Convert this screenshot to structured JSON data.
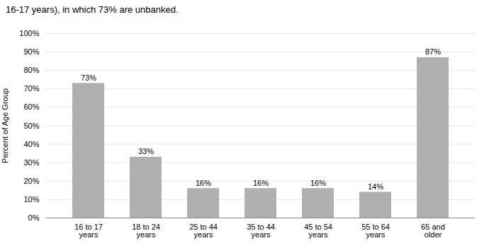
{
  "chart_data": {
    "type": "bar",
    "title": "16-17 years), in which 73% are unbanked.",
    "categories": [
      "16 to 17\nyears",
      "18 to 24\nyears",
      "25 to 44\nyears",
      "35 to 44\nyears",
      "45 to 54\nyears",
      "55 to 64\nyears",
      "65 and\nolder"
    ],
    "values": [
      0.73,
      0.33,
      0.16,
      0.16,
      0.16,
      0.14,
      0.87
    ],
    "value_labels": [
      "73%",
      "33%",
      "16%",
      "16%",
      "16%",
      "14%",
      "87%"
    ],
    "data_labels": true,
    "color": "#b0b0b0",
    "ylabel": "Percent of Age Group",
    "ylim": [
      0,
      1.0
    ],
    "yticks": [
      {
        "value": 0.0,
        "label": "0%"
      },
      {
        "value": 0.1,
        "label": "10%"
      },
      {
        "value": 0.2,
        "label": "20%"
      },
      {
        "value": 0.3,
        "label": "30%"
      },
      {
        "value": 0.4,
        "label": "40%"
      },
      {
        "value": 0.5,
        "label": "50%"
      },
      {
        "value": 0.6,
        "label": "60%"
      },
      {
        "value": 0.7,
        "label": "70%"
      },
      {
        "value": 0.8,
        "label": "80%"
      },
      {
        "value": 0.9,
        "label": "90%"
      },
      {
        "value": 1.0,
        "label": "100%"
      }
    ],
    "grid": true
  }
}
